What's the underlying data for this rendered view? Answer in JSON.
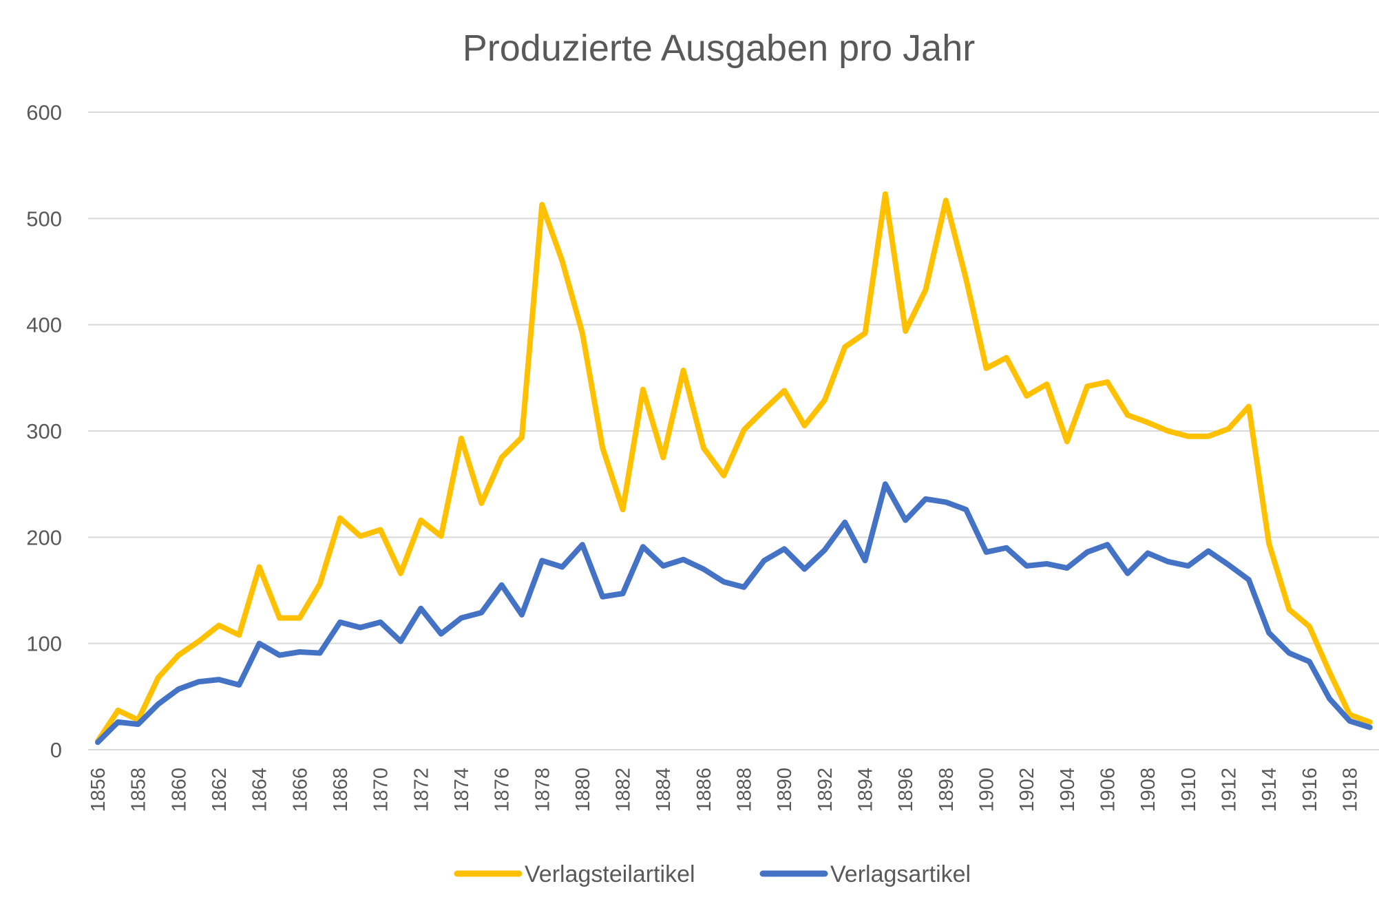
{
  "chart_data": {
    "type": "line",
    "title": "Produzierte Ausgaben pro Jahr",
    "xlabel": "",
    "ylabel": "",
    "ylim": [
      0,
      600
    ],
    "yticks": [
      0,
      100,
      200,
      300,
      400,
      500,
      600
    ],
    "xlim": [
      1856,
      1919
    ],
    "xtick_labels": [
      "1856",
      "1858",
      "1860",
      "1862",
      "1864",
      "1866",
      "1868",
      "1870",
      "1872",
      "1874",
      "1876",
      "1878",
      "1880",
      "1882",
      "1884",
      "1886",
      "1888",
      "1890",
      "1892",
      "1894",
      "1896",
      "1898",
      "1900",
      "1902",
      "1904",
      "1906",
      "1908",
      "1910",
      "1912",
      "1914",
      "1916",
      "1918"
    ],
    "grid": true,
    "legend_position": "bottom",
    "x": [
      1856,
      1857,
      1858,
      1859,
      1860,
      1861,
      1862,
      1863,
      1864,
      1865,
      1866,
      1867,
      1868,
      1869,
      1870,
      1871,
      1872,
      1873,
      1874,
      1875,
      1876,
      1877,
      1878,
      1879,
      1880,
      1881,
      1882,
      1883,
      1884,
      1885,
      1886,
      1887,
      1888,
      1889,
      1890,
      1891,
      1892,
      1893,
      1894,
      1895,
      1896,
      1897,
      1898,
      1899,
      1900,
      1901,
      1902,
      1903,
      1904,
      1905,
      1906,
      1907,
      1908,
      1909,
      1910,
      1911,
      1912,
      1913,
      1914,
      1915,
      1916,
      1917,
      1918,
      1919
    ],
    "series": [
      {
        "name": "Verlagsteilartikel",
        "color": "#FFC000",
        "values": [
          8,
          37,
          28,
          68,
          89,
          102,
          117,
          108,
          172,
          124,
          124,
          156,
          218,
          201,
          207,
          166,
          216,
          201,
          293,
          232,
          275,
          294,
          513,
          460,
          392,
          284,
          226,
          339,
          275,
          357,
          284,
          258,
          301,
          320,
          338,
          305,
          329,
          379,
          392,
          523,
          394,
          433,
          517,
          443,
          359,
          369,
          333,
          344,
          290,
          342,
          346,
          315,
          308,
          300,
          295,
          295,
          302,
          323,
          194,
          132,
          116,
          73,
          33,
          26
        ]
      },
      {
        "name": "Verlagsartikel",
        "color": "#4472C4",
        "values": [
          7,
          26,
          24,
          43,
          57,
          64,
          66,
          61,
          100,
          89,
          92,
          91,
          120,
          115,
          120,
          102,
          133,
          109,
          124,
          129,
          155,
          127,
          178,
          172,
          193,
          144,
          147,
          191,
          173,
          179,
          170,
          158,
          153,
          178,
          189,
          170,
          188,
          214,
          178,
          250,
          216,
          236,
          233,
          226,
          186,
          190,
          173,
          175,
          171,
          186,
          193,
          166,
          185,
          177,
          173,
          187,
          174,
          160,
          110,
          91,
          83,
          48,
          27,
          21
        ]
      }
    ]
  }
}
